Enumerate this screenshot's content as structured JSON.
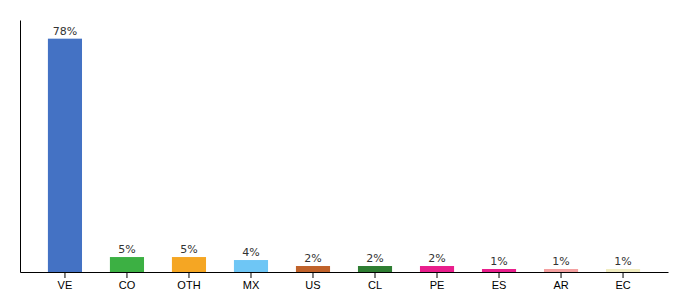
{
  "chart_data": {
    "type": "bar",
    "categories": [
      "VE",
      "CO",
      "OTH",
      "MX",
      "US",
      "CL",
      "PE",
      "ES",
      "AR",
      "EC"
    ],
    "values": [
      78,
      5,
      5,
      4,
      2,
      2,
      2,
      1,
      1,
      1
    ],
    "value_labels": [
      "78%",
      "5%",
      "5%",
      "4%",
      "2%",
      "2%",
      "2%",
      "1%",
      "1%",
      "1%"
    ],
    "colors": [
      "#4472c4",
      "#3cb043",
      "#f5a623",
      "#6ec6f5",
      "#c0622a",
      "#2e7d32",
      "#e91e8c",
      "#e91e8c",
      "#f4a0a0",
      "#f0ecc0"
    ],
    "ylim": [
      0,
      84.24
    ],
    "yticks": [],
    "data_labels": true,
    "tick_labels": "x",
    "grid": false
  }
}
